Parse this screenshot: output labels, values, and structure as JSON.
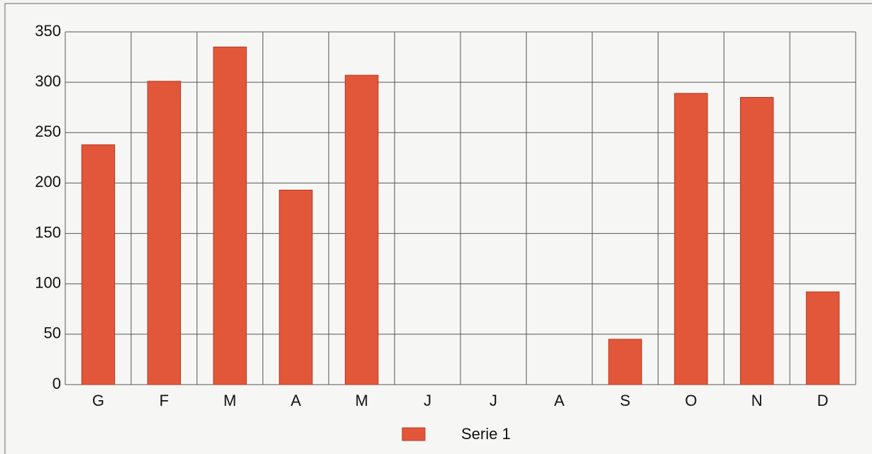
{
  "chart_data": {
    "type": "bar",
    "categories": [
      "G",
      "F",
      "M",
      "A",
      "M",
      "J",
      "J",
      "A",
      "S",
      "O",
      "N",
      "D"
    ],
    "series": [
      {
        "name": "Serie 1",
        "color": "#e2573a",
        "values": [
          238,
          301,
          335,
          193,
          307,
          0,
          0,
          0,
          45,
          289,
          285,
          92
        ]
      }
    ],
    "ylim": [
      0,
      350
    ],
    "yticks": [
      0,
      50,
      100,
      150,
      200,
      250,
      300,
      350
    ],
    "grid": true,
    "legend": "bottom"
  }
}
